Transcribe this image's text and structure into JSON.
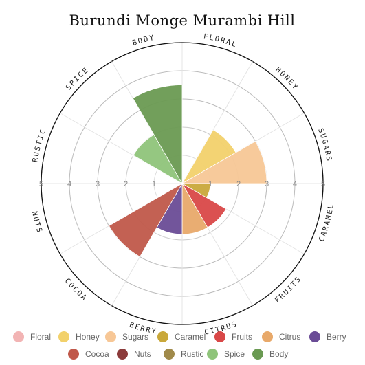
{
  "chart_data": {
    "type": "polar-area",
    "title": "Burundi Monge Murambi Hill",
    "rlim": [
      0,
      5
    ],
    "radial_ticks": [
      "1",
      "2",
      "3",
      "4",
      "5"
    ],
    "categories": [
      "Floral",
      "Honey",
      "Sugars",
      "Caramel",
      "Fruits",
      "Citrus",
      "Berry",
      "Cocoa",
      "Nuts",
      "Rustic",
      "Spice",
      "Body"
    ],
    "axis_labels": [
      "FLORAL",
      "HONEY",
      "SUGARS",
      "CARAMEL",
      "FRUITS",
      "CITRUS",
      "BERRY",
      "COCOA",
      "NUTS",
      "RUSTIC",
      "SPICE",
      "BODY"
    ],
    "values": [
      0,
      2.2,
      3,
      1,
      1.8,
      1.8,
      1.8,
      3,
      0,
      0,
      2,
      3.5
    ],
    "colors": [
      "#f2b4b4",
      "#f2d16b",
      "#f7c796",
      "#c9a83a",
      "#d94848",
      "#e8a96a",
      "#6a4c96",
      "#c0584a",
      "#8b3a3a",
      "#a08a4a",
      "#8fc47a",
      "#6a9a52"
    ],
    "legend": {
      "position": "bottom",
      "items": [
        "Floral",
        "Honey",
        "Sugars",
        "Caramel",
        "Fruits",
        "Citrus",
        "Berry",
        "Cocoa",
        "Nuts",
        "Rustic",
        "Spice",
        "Body"
      ]
    }
  }
}
